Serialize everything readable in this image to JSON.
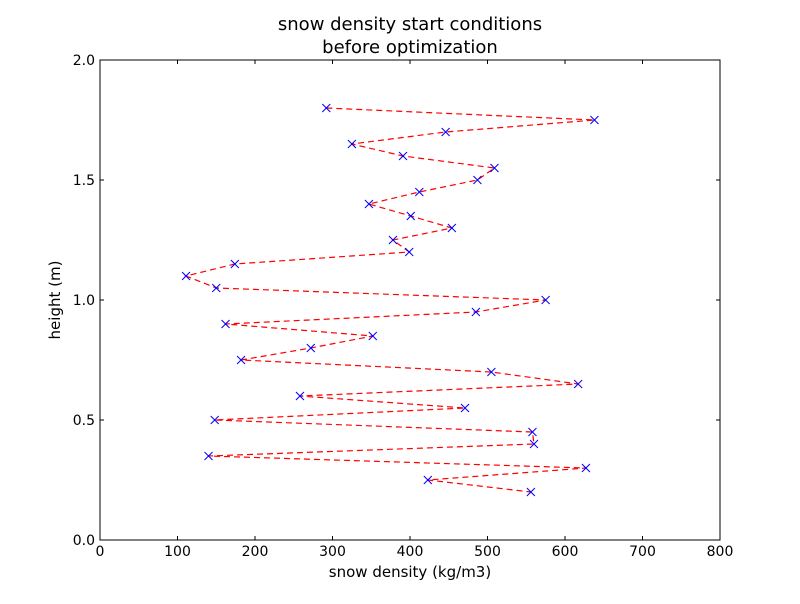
{
  "chart_data": {
    "type": "line",
    "title": "snow density start conditions",
    "subtitle": "before optimization",
    "xlabel": "snow density (kg/m3)",
    "ylabel": "height (m)",
    "xlim": [
      0,
      800
    ],
    "ylim": [
      0.0,
      2.0
    ],
    "x_ticks": [
      "0",
      "100",
      "200",
      "300",
      "400",
      "500",
      "600",
      "700",
      "800"
    ],
    "y_ticks": [
      "0.0",
      "0.5",
      "1.0",
      "1.5",
      "2.0"
    ],
    "grid": false,
    "legend": "none",
    "series": [
      {
        "line_color": "#ff0000",
        "marker_color": "#0000ff",
        "line_style": "dashed",
        "marker": "x",
        "points": [
          {
            "density": 292,
            "height": 1.8
          },
          {
            "density": 638,
            "height": 1.75
          },
          {
            "density": 446,
            "height": 1.7
          },
          {
            "density": 325,
            "height": 1.65
          },
          {
            "density": 391,
            "height": 1.6
          },
          {
            "density": 509,
            "height": 1.55
          },
          {
            "density": 487,
            "height": 1.5
          },
          {
            "density": 412,
            "height": 1.45
          },
          {
            "density": 347,
            "height": 1.4
          },
          {
            "density": 401,
            "height": 1.35
          },
          {
            "density": 454,
            "height": 1.3
          },
          {
            "density": 378,
            "height": 1.25
          },
          {
            "density": 399,
            "height": 1.2
          },
          {
            "density": 174,
            "height": 1.15
          },
          {
            "density": 111,
            "height": 1.1
          },
          {
            "density": 150,
            "height": 1.05
          },
          {
            "density": 575,
            "height": 1.0
          },
          {
            "density": 485,
            "height": 0.95
          },
          {
            "density": 162,
            "height": 0.9
          },
          {
            "density": 352,
            "height": 0.85
          },
          {
            "density": 272,
            "height": 0.8
          },
          {
            "density": 182,
            "height": 0.75
          },
          {
            "density": 505,
            "height": 0.7
          },
          {
            "density": 617,
            "height": 0.65
          },
          {
            "density": 258,
            "height": 0.6
          },
          {
            "density": 471,
            "height": 0.55
          },
          {
            "density": 148,
            "height": 0.5
          },
          {
            "density": 558,
            "height": 0.45
          },
          {
            "density": 560,
            "height": 0.4
          },
          {
            "density": 140,
            "height": 0.35
          },
          {
            "density": 627,
            "height": 0.3
          },
          {
            "density": 423,
            "height": 0.25
          },
          {
            "density": 556,
            "height": 0.2
          }
        ]
      }
    ]
  }
}
